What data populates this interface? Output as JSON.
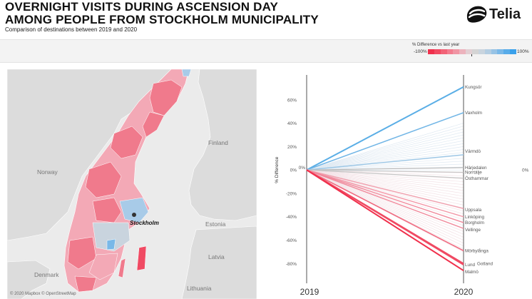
{
  "header": {
    "title_line1": "OVERNIGHT VISITS DURING ASCENSION DAY",
    "title_line2": "AMONG PEOPLE FROM STOCKHOLM MUNICIPALITY",
    "subtitle": "Comparison of destinations between 2019 and 2020",
    "logo_text": "Telia",
    "logo_icon": "telia-pebble-icon"
  },
  "legend": {
    "title": "% Difference vs last year",
    "min_label": "-100%",
    "max_label": "100%",
    "colors": [
      "#f0304c",
      "#f14a62",
      "#f26377",
      "#f27d8f",
      "#f095a4",
      "#ecb3bd",
      "#e2cfd3",
      "#d4d4d4",
      "#c9d4de",
      "#b3cde2",
      "#97c3e5",
      "#79b8e8",
      "#58ace9",
      "#3aa1eb"
    ]
  },
  "map": {
    "labels": {
      "finland": "Finland",
      "norway": "Norway",
      "estonia": "Estonia",
      "latvia": "Latvia",
      "denmark": "Denmark",
      "lithuania": "Lithuania",
      "city": "Stockholm"
    },
    "credit": "© 2020 Mapbox © OpenStreetMap",
    "colors": {
      "land": "#dcdcdc",
      "water": "#ebebeb",
      "red": "#f07a8c",
      "pink": "#f3a9b6",
      "blue": "#a8cbe8"
    }
  },
  "chart_data": {
    "type": "line",
    "x": [
      "2019",
      "2020"
    ],
    "ylabel": "% Difference",
    "yticks": [
      "60%",
      "40%",
      "20%",
      "0%",
      "-20%",
      "-40%",
      "-60%",
      "-80%"
    ],
    "ylim": [
      -92,
      80
    ],
    "start_label": "0%",
    "end_zero_label": "0%",
    "series": [
      {
        "name": "Kungsör",
        "values": [
          0,
          71
        ],
        "color": "#5aaee6",
        "width": 2
      },
      {
        "name": "Vaxholm",
        "values": [
          0,
          49
        ],
        "color": "#72b6e6",
        "width": 1.6
      },
      {
        "name": "Värmdö",
        "values": [
          0,
          13
        ],
        "color": "#9cc7e6",
        "width": 1.4
      },
      {
        "name": "Härjedalen",
        "values": [
          0,
          2
        ],
        "color": "#bcbcbc",
        "width": 1.2
      },
      {
        "name": "Norrtälje",
        "values": [
          0,
          -2
        ],
        "color": "#c6c6c6",
        "width": 1.2
      },
      {
        "name": "Östhammar",
        "values": [
          0,
          -7
        ],
        "color": "#c6c6c6",
        "width": 1.2
      },
      {
        "name": "Uppsala",
        "values": [
          0,
          -33
        ],
        "color": "#f0a0ae",
        "width": 1.4
      },
      {
        "name": "Linköping",
        "values": [
          0,
          -40
        ],
        "color": "#f296a6",
        "width": 1.4
      },
      {
        "name": "Borgholm",
        "values": [
          0,
          -45
        ],
        "color": "#f0899b",
        "width": 1.4
      },
      {
        "name": "Vellinge",
        "values": [
          0,
          -50
        ],
        "color": "#f0899b",
        "width": 1.4
      },
      {
        "name": "Mörbylånga",
        "values": [
          0,
          -69
        ],
        "color": "#f06a80",
        "width": 1.6
      },
      {
        "name": "Lund",
        "values": [
          0,
          -81
        ],
        "color": "#f04a63",
        "width": 2
      },
      {
        "name": "Gotland",
        "values": [
          0,
          -80
        ],
        "color": "#f04a63",
        "width": 2
      },
      {
        "name": "Malmö",
        "values": [
          0,
          -86
        ],
        "color": "#f0304c",
        "width": 2
      }
    ],
    "labels": [
      {
        "text": "Kungsör",
        "y": 71
      },
      {
        "text": "Vaxholm",
        "y": 49
      },
      {
        "text": "Värmdö",
        "y": 16
      },
      {
        "text": "Härjedalen",
        "y": 2
      },
      {
        "text": "Norrtälje",
        "y": -2
      },
      {
        "text": "Östhammar",
        "y": -7
      },
      {
        "text": "Uppsala",
        "y": -34
      },
      {
        "text": "Linköping",
        "y": -40
      },
      {
        "text": "Borgholm",
        "y": -45
      },
      {
        "text": "Vellinge",
        "y": -51
      },
      {
        "text": "Mörbylånga",
        "y": -69
      },
      {
        "text": "Lund",
        "y": -81
      },
      {
        "text": "Gotland",
        "y": -80
      },
      {
        "text": "Malmö",
        "y": -87
      }
    ]
  }
}
